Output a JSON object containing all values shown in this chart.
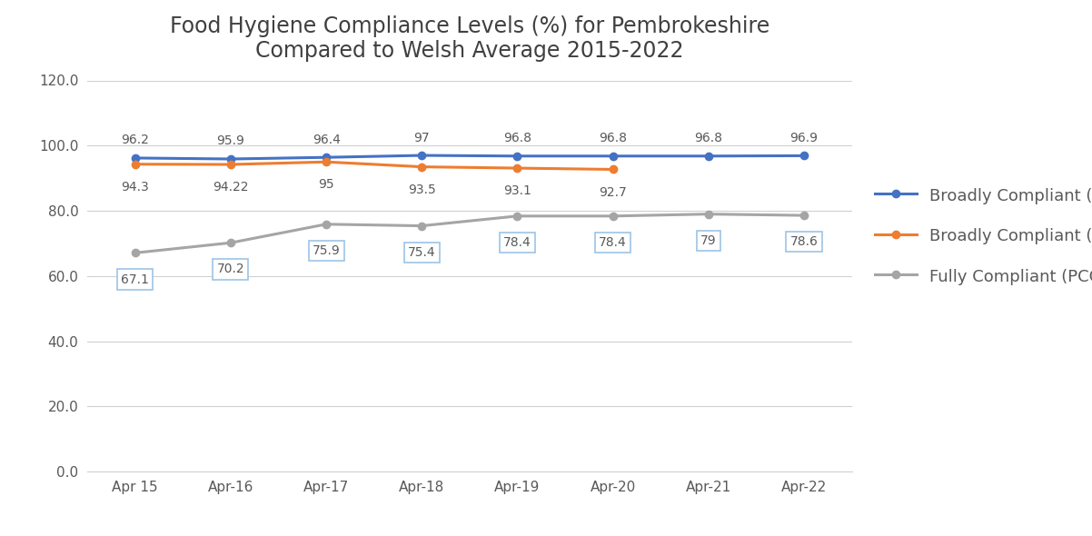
{
  "title_line1": "Food Hygiene Compliance Levels (%) for Pembrokeshire",
  "title_line2": "Compared to Welsh Average 2015-2022",
  "x_labels": [
    "Apr 15",
    "Apr-16",
    "Apr-17",
    "Apr-18",
    "Apr-19",
    "Apr-20",
    "Apr-21",
    "Apr-22"
  ],
  "broadly_compliant_pcc": [
    96.2,
    95.9,
    96.4,
    97.0,
    96.8,
    96.8,
    96.8,
    96.9
  ],
  "broadly_compliant_wales": [
    94.3,
    94.22,
    95.0,
    93.5,
    93.1,
    92.7,
    null,
    null
  ],
  "fully_compliant_pcc": [
    67.1,
    70.2,
    75.9,
    75.4,
    78.4,
    78.4,
    79.0,
    78.6
  ],
  "broadly_compliant_pcc_labels": [
    "96.2",
    "95.9",
    "96.4",
    "97",
    "96.8",
    "96.8",
    "96.8",
    "96.9"
  ],
  "broadly_compliant_wales_labels": [
    "94.3",
    "94.22",
    "95",
    "93.5",
    "93.1",
    "92.7",
    "",
    ""
  ],
  "fully_compliant_pcc_labels": [
    "67.1",
    "70.2",
    "75.9",
    "75.4",
    "78.4",
    "78.4",
    "79",
    "78.6"
  ],
  "color_pcc": "#4472C4",
  "color_wales": "#ED7D31",
  "color_fully": "#A5A5A5",
  "box_edge_color": "#9DC3E6",
  "box_face_color": "#FFFFFF",
  "ylim_min": 0.0,
  "ylim_max": 120.0,
  "yticks": [
    0.0,
    20.0,
    40.0,
    60.0,
    80.0,
    100.0,
    120.0
  ],
  "legend_labels": [
    "Broadly Compliant (PCC)",
    "Broadly Compliant (Wales)",
    "Fully Compliant (PCC)"
  ],
  "title_fontsize": 17,
  "label_fontsize": 10,
  "tick_fontsize": 11,
  "legend_fontsize": 13
}
